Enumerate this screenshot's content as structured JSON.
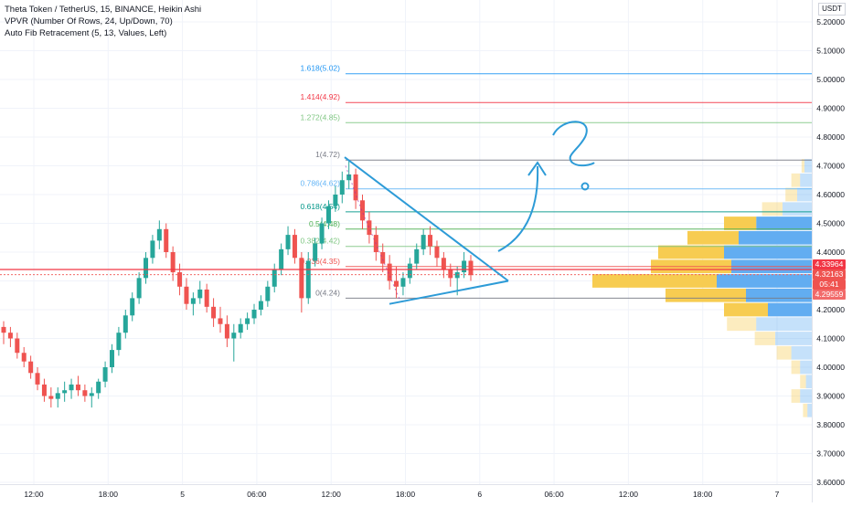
{
  "legend": {
    "line1": "Theta Token / TetherUS, 15, BINANCE, Heikin Ashi",
    "line2": "VPVR (Number Of Rows, 24, Up/Down, 70)",
    "line3": "Auto Fib Retracement (5, 13, Values, Left)"
  },
  "currency": "USDT",
  "chart_data": {
    "type": "candlestick",
    "symbol": "Theta Token / TetherUS",
    "interval": "15",
    "exchange": "BINANCE",
    "style": "Heikin Ashi",
    "y_axis": {
      "ticks": [
        "5.20000",
        "5.10000",
        "5.00000",
        "4.90000",
        "4.80000",
        "4.70000",
        "4.60000",
        "4.50000",
        "4.40000",
        "4.30000",
        "4.20000",
        "4.10000",
        "4.00000",
        "3.90000",
        "3.80000",
        "3.70000",
        "3.60000"
      ],
      "range": [
        3.59,
        5.25
      ]
    },
    "x_axis": {
      "ticks": [
        "12:00",
        "18:00",
        "5",
        "06:00",
        "12:00",
        "18:00",
        "6",
        "06:00",
        "12:00",
        "18:00",
        "7"
      ]
    },
    "colors": {
      "up": "#26a69a",
      "down": "#ef5350",
      "fib_0": "#787b86",
      "fib_236": "#ef5350",
      "fib_382": "#81c784",
      "fib_5": "#4caf50",
      "fib_618": "#009688",
      "fib_786": "#64b5f6",
      "fib_1": "#787b86",
      "fib_1272": "#81c784",
      "fib_1414": "#f23645",
      "fib_1618": "#2196f3",
      "vp_up": "#f7c948",
      "vp_down": "#5aa9f0",
      "triangle": "#2d9bd7"
    },
    "ohlc": [
      [
        4.14,
        4.16,
        4.08,
        4.12
      ],
      [
        4.12,
        4.14,
        4.07,
        4.1
      ],
      [
        4.1,
        4.12,
        4.03,
        4.05
      ],
      [
        4.05,
        4.07,
        4.0,
        4.02
      ],
      [
        4.02,
        4.04,
        3.96,
        3.98
      ],
      [
        3.98,
        4.0,
        3.92,
        3.94
      ],
      [
        3.94,
        3.96,
        3.88,
        3.9
      ],
      [
        3.9,
        3.93,
        3.86,
        3.89
      ],
      [
        3.89,
        3.93,
        3.86,
        3.91
      ],
      [
        3.91,
        3.95,
        3.88,
        3.92
      ],
      [
        3.92,
        3.96,
        3.89,
        3.94
      ],
      [
        3.94,
        3.97,
        3.9,
        3.92
      ],
      [
        3.92,
        3.94,
        3.88,
        3.9
      ],
      [
        3.9,
        3.93,
        3.86,
        3.91
      ],
      [
        3.91,
        3.96,
        3.89,
        3.95
      ],
      [
        3.95,
        4.02,
        3.93,
        4.0
      ],
      [
        4.0,
        4.08,
        3.98,
        4.06
      ],
      [
        4.06,
        4.14,
        4.04,
        4.12
      ],
      [
        4.12,
        4.2,
        4.1,
        4.18
      ],
      [
        4.18,
        4.26,
        4.16,
        4.24
      ],
      [
        4.24,
        4.33,
        4.22,
        4.31
      ],
      [
        4.31,
        4.4,
        4.29,
        4.38
      ],
      [
        4.38,
        4.46,
        4.36,
        4.44
      ],
      [
        4.44,
        4.51,
        4.41,
        4.48
      ],
      [
        4.48,
        4.5,
        4.38,
        4.4
      ],
      [
        4.4,
        4.42,
        4.3,
        4.33
      ],
      [
        4.33,
        4.36,
        4.25,
        4.28
      ],
      [
        4.28,
        4.31,
        4.2,
        4.22
      ],
      [
        4.22,
        4.26,
        4.18,
        4.24
      ],
      [
        4.24,
        4.3,
        4.22,
        4.27
      ],
      [
        4.27,
        4.29,
        4.19,
        4.21
      ],
      [
        4.21,
        4.24,
        4.14,
        4.17
      ],
      [
        4.17,
        4.21,
        4.12,
        4.15
      ],
      [
        4.15,
        4.18,
        4.07,
        4.1
      ],
      [
        4.1,
        4.15,
        4.02,
        4.12
      ],
      [
        4.12,
        4.17,
        4.1,
        4.15
      ],
      [
        4.15,
        4.19,
        4.13,
        4.17
      ],
      [
        4.17,
        4.22,
        4.15,
        4.2
      ],
      [
        4.2,
        4.25,
        4.18,
        4.23
      ],
      [
        4.23,
        4.3,
        4.21,
        4.28
      ],
      [
        4.28,
        4.36,
        4.26,
        4.34
      ],
      [
        4.34,
        4.43,
        4.32,
        4.41
      ],
      [
        4.41,
        4.49,
        4.39,
        4.46
      ],
      [
        4.46,
        4.48,
        4.36,
        4.38
      ],
      [
        4.38,
        4.4,
        4.19,
        4.24
      ],
      [
        4.24,
        4.4,
        4.22,
        4.37
      ],
      [
        4.37,
        4.45,
        4.35,
        4.43
      ],
      [
        4.43,
        4.52,
        4.41,
        4.5
      ],
      [
        4.5,
        4.58,
        4.48,
        4.56
      ],
      [
        4.56,
        4.63,
        4.54,
        4.6
      ],
      [
        4.6,
        4.68,
        4.57,
        4.65
      ],
      [
        4.65,
        4.72,
        4.62,
        4.67
      ],
      [
        4.67,
        4.69,
        4.55,
        4.58
      ],
      [
        4.58,
        4.6,
        4.48,
        4.51
      ],
      [
        4.51,
        4.54,
        4.43,
        4.46
      ],
      [
        4.46,
        4.49,
        4.37,
        4.4
      ],
      [
        4.4,
        4.43,
        4.33,
        4.36
      ],
      [
        4.36,
        4.39,
        4.27,
        4.3
      ],
      [
        4.3,
        4.35,
        4.24,
        4.28
      ],
      [
        4.28,
        4.33,
        4.25,
        4.31
      ],
      [
        4.31,
        4.38,
        4.29,
        4.36
      ],
      [
        4.36,
        4.43,
        4.34,
        4.41
      ],
      [
        4.41,
        4.48,
        4.39,
        4.46
      ],
      [
        4.46,
        4.49,
        4.39,
        4.42
      ],
      [
        4.42,
        4.44,
        4.35,
        4.38
      ],
      [
        4.38,
        4.4,
        4.31,
        4.34
      ],
      [
        4.34,
        4.36,
        4.28,
        4.31
      ],
      [
        4.31,
        4.35,
        4.25,
        4.33
      ],
      [
        4.33,
        4.4,
        4.31,
        4.37
      ],
      [
        4.37,
        4.39,
        4.3,
        4.32
      ]
    ],
    "fib_levels": [
      {
        "label": "0(4.24)",
        "value": 4.24,
        "key": "fib_0"
      },
      {
        "label": "0.236(4.35)",
        "value": 4.35,
        "key": "fib_236"
      },
      {
        "label": "0.382(4.42)",
        "value": 4.42,
        "key": "fib_382"
      },
      {
        "label": "0.5(4.48)",
        "value": 4.48,
        "key": "fib_5"
      },
      {
        "label": "0.618(4.54)",
        "value": 4.54,
        "key": "fib_618"
      },
      {
        "label": "0.786(4.62)",
        "value": 4.62,
        "key": "fib_786"
      },
      {
        "label": "1(4.72)",
        "value": 4.72,
        "key": "fib_1"
      },
      {
        "label": "1.272(4.85)",
        "value": 4.85,
        "key": "fib_1272"
      },
      {
        "label": "1.414(4.92)",
        "value": 4.92,
        "key": "fib_1414"
      },
      {
        "label": "1.618(5.02)",
        "value": 5.02,
        "key": "fib_1618"
      }
    ],
    "volume_profile": [
      {
        "price": 4.7,
        "up": 0.02,
        "down": 0.05
      },
      {
        "price": 4.65,
        "up": 0.06,
        "down": 0.08
      },
      {
        "price": 4.6,
        "up": 0.08,
        "down": 0.1
      },
      {
        "price": 4.55,
        "up": 0.14,
        "down": 0.2
      },
      {
        "price": 4.5,
        "up": 0.22,
        "down": 0.38
      },
      {
        "price": 4.45,
        "up": 0.35,
        "down": 0.5
      },
      {
        "price": 4.4,
        "up": 0.45,
        "down": 0.6
      },
      {
        "price": 4.35,
        "up": 0.55,
        "down": 0.55
      },
      {
        "price": 4.3,
        "up": 0.85,
        "down": 0.65
      },
      {
        "price": 4.25,
        "up": 0.55,
        "down": 0.45
      },
      {
        "price": 4.2,
        "up": 0.3,
        "down": 0.3
      },
      {
        "price": 4.15,
        "up": 0.2,
        "down": 0.38
      },
      {
        "price": 4.1,
        "up": 0.14,
        "down": 0.25
      },
      {
        "price": 4.05,
        "up": 0.1,
        "down": 0.14
      },
      {
        "price": 4.0,
        "up": 0.06,
        "down": 0.08
      },
      {
        "price": 3.95,
        "up": 0.04,
        "down": 0.04
      },
      {
        "price": 3.9,
        "up": 0.06,
        "down": 0.08
      },
      {
        "price": 3.85,
        "up": 0.03,
        "down": 0.03
      }
    ],
    "current_price_line": 4.33964,
    "price_labels": [
      {
        "text": "4.33964",
        "price": 4.33964,
        "color": "#f23645"
      },
      {
        "text": "4.32163",
        "price": 4.32163,
        "color": "#ef5350"
      },
      {
        "text": "05:41",
        "price": 4.305,
        "color": "#ef5350"
      },
      {
        "text": "4.29559",
        "price": 4.29559,
        "color": "#f26a6a"
      }
    ]
  }
}
